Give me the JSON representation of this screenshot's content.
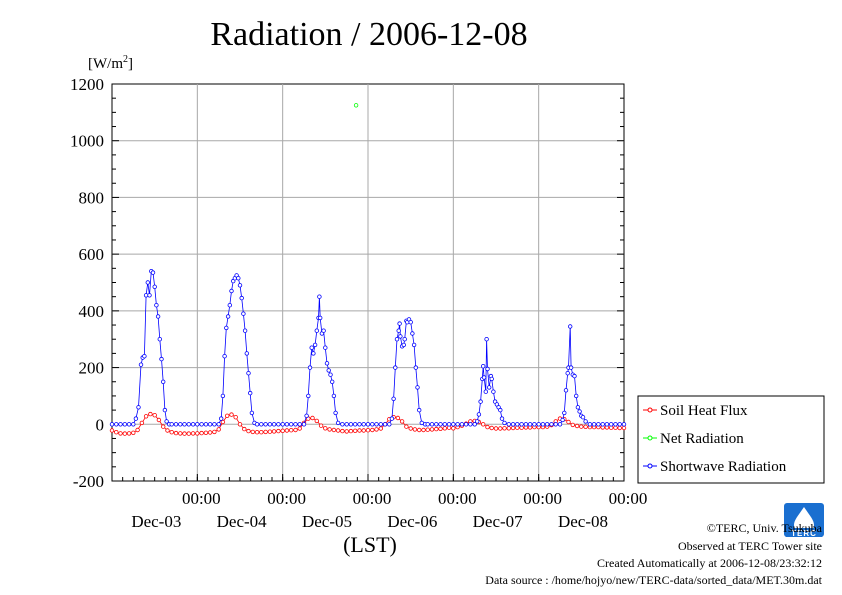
{
  "chart_data": {
    "type": "line",
    "title": "Radiation / 2006-12-08",
    "ylabel": "[W/m",
    "ylabel_sup": "2",
    "ylabel_end": "]",
    "xlabel": "(LST)",
    "ylim": [
      -200,
      1200
    ],
    "yticks": [
      -200,
      0,
      200,
      400,
      600,
      800,
      1000,
      1200
    ],
    "xlim": [
      2.5,
      8.5
    ],
    "x_unit": "days of December 2006 (LST)",
    "xticks": [
      {
        "x": 3.5,
        "time": "00:00",
        "date": "Dec-03"
      },
      {
        "x": 4.5,
        "time": "00:00",
        "date": "Dec-04"
      },
      {
        "x": 5.5,
        "time": "00:00",
        "date": "Dec-05"
      },
      {
        "x": 6.5,
        "time": "00:00",
        "date": "Dec-06"
      },
      {
        "x": 7.5,
        "time": "00:00",
        "date": "Dec-07"
      },
      {
        "x": 8.5,
        "time": "00:00",
        "date": "Dec-08"
      }
    ],
    "grid": true,
    "legend_position": "right",
    "series": [
      {
        "name": "Soil Heat Flux",
        "color": "#ff0000",
        "points": [
          [
            2.5,
            -22
          ],
          [
            2.55,
            -28
          ],
          [
            2.6,
            -32
          ],
          [
            2.65,
            -33
          ],
          [
            2.7,
            -32
          ],
          [
            2.75,
            -30
          ],
          [
            2.8,
            -20
          ],
          [
            2.85,
            5
          ],
          [
            2.9,
            28
          ],
          [
            2.95,
            36
          ],
          [
            3.0,
            32
          ],
          [
            3.05,
            15
          ],
          [
            3.1,
            -8
          ],
          [
            3.15,
            -22
          ],
          [
            3.2,
            -28
          ],
          [
            3.25,
            -31
          ],
          [
            3.3,
            -32
          ],
          [
            3.35,
            -33
          ],
          [
            3.4,
            -33
          ],
          [
            3.45,
            -32
          ],
          [
            3.5,
            -32
          ],
          [
            3.55,
            -31
          ],
          [
            3.6,
            -30
          ],
          [
            3.65,
            -29
          ],
          [
            3.7,
            -27
          ],
          [
            3.75,
            -18
          ],
          [
            3.8,
            8
          ],
          [
            3.85,
            30
          ],
          [
            3.9,
            34
          ],
          [
            3.95,
            25
          ],
          [
            4.0,
            0
          ],
          [
            4.05,
            -17
          ],
          [
            4.1,
            -24
          ],
          [
            4.15,
            -27
          ],
          [
            4.2,
            -28
          ],
          [
            4.25,
            -28
          ],
          [
            4.3,
            -27
          ],
          [
            4.35,
            -26
          ],
          [
            4.4,
            -25
          ],
          [
            4.45,
            -24
          ],
          [
            4.5,
            -23
          ],
          [
            4.55,
            -22
          ],
          [
            4.6,
            -21
          ],
          [
            4.65,
            -20
          ],
          [
            4.7,
            -15
          ],
          [
            4.75,
            5
          ],
          [
            4.8,
            20
          ],
          [
            4.85,
            22
          ],
          [
            4.9,
            12
          ],
          [
            4.95,
            -5
          ],
          [
            5.0,
            -14
          ],
          [
            5.05,
            -18
          ],
          [
            5.1,
            -20
          ],
          [
            5.15,
            -22
          ],
          [
            5.2,
            -24
          ],
          [
            5.25,
            -25
          ],
          [
            5.3,
            -24
          ],
          [
            5.35,
            -23
          ],
          [
            5.4,
            -22
          ],
          [
            5.45,
            -22
          ],
          [
            5.5,
            -21
          ],
          [
            5.55,
            -20
          ],
          [
            5.6,
            -18
          ],
          [
            5.65,
            -15
          ],
          [
            5.7,
            0
          ],
          [
            5.75,
            18
          ],
          [
            5.8,
            25
          ],
          [
            5.85,
            22
          ],
          [
            5.9,
            10
          ],
          [
            5.95,
            -8
          ],
          [
            6.0,
            -15
          ],
          [
            6.05,
            -18
          ],
          [
            6.1,
            -20
          ],
          [
            6.15,
            -20
          ],
          [
            6.2,
            -19
          ],
          [
            6.25,
            -18
          ],
          [
            6.3,
            -17
          ],
          [
            6.35,
            -16
          ],
          [
            6.4,
            -14
          ],
          [
            6.45,
            -12
          ],
          [
            6.5,
            -14
          ],
          [
            6.55,
            -10
          ],
          [
            6.6,
            -5
          ],
          [
            6.65,
            2
          ],
          [
            6.7,
            10
          ],
          [
            6.75,
            12
          ],
          [
            6.8,
            8
          ],
          [
            6.85,
            0
          ],
          [
            6.9,
            -10
          ],
          [
            6.95,
            -13
          ],
          [
            7.0,
            -15
          ],
          [
            7.05,
            -15
          ],
          [
            7.1,
            -14
          ],
          [
            7.15,
            -14
          ],
          [
            7.2,
            -13
          ],
          [
            7.25,
            -12
          ],
          [
            7.3,
            -12
          ],
          [
            7.35,
            -11
          ],
          [
            7.4,
            -11
          ],
          [
            7.45,
            -10
          ],
          [
            7.5,
            -10
          ],
          [
            7.55,
            -10
          ],
          [
            7.6,
            -8
          ],
          [
            7.65,
            -3
          ],
          [
            7.7,
            10
          ],
          [
            7.75,
            20
          ],
          [
            7.8,
            18
          ],
          [
            7.85,
            8
          ],
          [
            7.9,
            -2
          ],
          [
            7.95,
            -6
          ],
          [
            8.0,
            -8
          ],
          [
            8.05,
            -9
          ],
          [
            8.1,
            -10
          ],
          [
            8.15,
            -10
          ],
          [
            8.2,
            -10
          ],
          [
            8.25,
            -11
          ],
          [
            8.3,
            -11
          ],
          [
            8.35,
            -12
          ],
          [
            8.4,
            -12
          ],
          [
            8.45,
            -13
          ],
          [
            8.5,
            -13
          ]
        ]
      },
      {
        "name": "Net Radiation",
        "color": "#00ff00",
        "points": [
          [
            5.36,
            1125
          ]
        ]
      },
      {
        "name": "Shortwave Radiation",
        "color": "#0000ff",
        "points": [
          [
            2.5,
            0
          ],
          [
            2.55,
            0
          ],
          [
            2.6,
            0
          ],
          [
            2.65,
            0
          ],
          [
            2.7,
            0
          ],
          [
            2.75,
            0
          ],
          [
            2.78,
            20
          ],
          [
            2.81,
            60
          ],
          [
            2.84,
            210
          ],
          [
            2.86,
            235
          ],
          [
            2.88,
            240
          ],
          [
            2.9,
            455
          ],
          [
            2.92,
            500
          ],
          [
            2.94,
            455
          ],
          [
            2.96,
            540
          ],
          [
            2.98,
            535
          ],
          [
            3.0,
            485
          ],
          [
            3.02,
            420
          ],
          [
            3.04,
            380
          ],
          [
            3.06,
            300
          ],
          [
            3.08,
            230
          ],
          [
            3.1,
            150
          ],
          [
            3.12,
            50
          ],
          [
            3.14,
            10
          ],
          [
            3.17,
            0
          ],
          [
            3.2,
            0
          ],
          [
            3.25,
            0
          ],
          [
            3.3,
            0
          ],
          [
            3.35,
            0
          ],
          [
            3.4,
            0
          ],
          [
            3.45,
            0
          ],
          [
            3.5,
            0
          ],
          [
            3.55,
            0
          ],
          [
            3.6,
            0
          ],
          [
            3.65,
            0
          ],
          [
            3.7,
            0
          ],
          [
            3.75,
            0
          ],
          [
            3.78,
            20
          ],
          [
            3.8,
            100
          ],
          [
            3.82,
            240
          ],
          [
            3.84,
            340
          ],
          [
            3.86,
            380
          ],
          [
            3.88,
            420
          ],
          [
            3.9,
            470
          ],
          [
            3.92,
            505
          ],
          [
            3.94,
            515
          ],
          [
            3.96,
            525
          ],
          [
            3.98,
            515
          ],
          [
            4.0,
            490
          ],
          [
            4.02,
            445
          ],
          [
            4.04,
            390
          ],
          [
            4.06,
            330
          ],
          [
            4.08,
            250
          ],
          [
            4.1,
            180
          ],
          [
            4.12,
            110
          ],
          [
            4.14,
            40
          ],
          [
            4.17,
            5
          ],
          [
            4.2,
            0
          ],
          [
            4.25,
            0
          ],
          [
            4.3,
            0
          ],
          [
            4.35,
            0
          ],
          [
            4.4,
            0
          ],
          [
            4.45,
            0
          ],
          [
            4.5,
            0
          ],
          [
            4.55,
            0
          ],
          [
            4.6,
            0
          ],
          [
            4.65,
            0
          ],
          [
            4.7,
            0
          ],
          [
            4.75,
            0
          ],
          [
            4.78,
            30
          ],
          [
            4.8,
            100
          ],
          [
            4.82,
            200
          ],
          [
            4.84,
            270
          ],
          [
            4.86,
            250
          ],
          [
            4.88,
            280
          ],
          [
            4.9,
            330
          ],
          [
            4.92,
            375
          ],
          [
            4.93,
            450
          ],
          [
            4.94,
            375
          ],
          [
            4.96,
            320
          ],
          [
            4.98,
            330
          ],
          [
            5.0,
            270
          ],
          [
            5.02,
            215
          ],
          [
            5.04,
            190
          ],
          [
            5.06,
            175
          ],
          [
            5.08,
            150
          ],
          [
            5.1,
            100
          ],
          [
            5.12,
            40
          ],
          [
            5.15,
            5
          ],
          [
            5.2,
            0
          ],
          [
            5.25,
            0
          ],
          [
            5.3,
            0
          ],
          [
            5.35,
            0
          ],
          [
            5.4,
            0
          ],
          [
            5.45,
            0
          ],
          [
            5.5,
            0
          ],
          [
            5.55,
            0
          ],
          [
            5.6,
            0
          ],
          [
            5.65,
            0
          ],
          [
            5.7,
            0
          ],
          [
            5.75,
            0
          ],
          [
            5.78,
            20
          ],
          [
            5.8,
            90
          ],
          [
            5.82,
            200
          ],
          [
            5.84,
            300
          ],
          [
            5.86,
            330
          ],
          [
            5.87,
            355
          ],
          [
            5.88,
            310
          ],
          [
            5.9,
            275
          ],
          [
            5.92,
            280
          ],
          [
            5.93,
            300
          ],
          [
            5.95,
            365
          ],
          [
            5.96,
            360
          ],
          [
            5.98,
            370
          ],
          [
            6.0,
            360
          ],
          [
            6.02,
            320
          ],
          [
            6.04,
            280
          ],
          [
            6.06,
            200
          ],
          [
            6.08,
            130
          ],
          [
            6.1,
            50
          ],
          [
            6.13,
            5
          ],
          [
            6.17,
            0
          ],
          [
            6.2,
            0
          ],
          [
            6.25,
            0
          ],
          [
            6.3,
            0
          ],
          [
            6.35,
            0
          ],
          [
            6.4,
            0
          ],
          [
            6.45,
            0
          ],
          [
            6.5,
            0
          ],
          [
            6.55,
            0
          ],
          [
            6.6,
            0
          ],
          [
            6.65,
            0
          ],
          [
            6.7,
            0
          ],
          [
            6.75,
            0
          ],
          [
            6.78,
            10
          ],
          [
            6.8,
            35
          ],
          [
            6.82,
            80
          ],
          [
            6.84,
            160
          ],
          [
            6.85,
            205
          ],
          [
            6.86,
            165
          ],
          [
            6.88,
            115
          ],
          [
            6.89,
            300
          ],
          [
            6.9,
            195
          ],
          [
            6.92,
            130
          ],
          [
            6.94,
            170
          ],
          [
            6.95,
            160
          ],
          [
            6.97,
            115
          ],
          [
            6.99,
            80
          ],
          [
            7.01,
            70
          ],
          [
            7.03,
            60
          ],
          [
            7.05,
            50
          ],
          [
            7.07,
            20
          ],
          [
            7.1,
            5
          ],
          [
            7.15,
            0
          ],
          [
            7.2,
            0
          ],
          [
            7.25,
            0
          ],
          [
            7.3,
            0
          ],
          [
            7.35,
            0
          ],
          [
            7.4,
            0
          ],
          [
            7.45,
            0
          ],
          [
            7.5,
            0
          ],
          [
            7.55,
            0
          ],
          [
            7.6,
            0
          ],
          [
            7.65,
            0
          ],
          [
            7.7,
            0
          ],
          [
            7.75,
            0
          ],
          [
            7.78,
            15
          ],
          [
            7.8,
            40
          ],
          [
            7.82,
            120
          ],
          [
            7.84,
            180
          ],
          [
            7.85,
            200
          ],
          [
            7.87,
            345
          ],
          [
            7.88,
            200
          ],
          [
            7.9,
            175
          ],
          [
            7.92,
            170
          ],
          [
            7.94,
            100
          ],
          [
            7.96,
            60
          ],
          [
            7.98,
            45
          ],
          [
            8.0,
            30
          ],
          [
            8.02,
            25
          ],
          [
            8.05,
            10
          ],
          [
            8.1,
            0
          ],
          [
            8.15,
            0
          ],
          [
            8.2,
            0
          ],
          [
            8.25,
            0
          ],
          [
            8.3,
            0
          ],
          [
            8.35,
            0
          ],
          [
            8.4,
            0
          ],
          [
            8.45,
            0
          ],
          [
            8.5,
            0
          ]
        ]
      }
    ]
  },
  "footer": {
    "copyright": "©TERC, Univ. Tsukuba",
    "observed": "Observed at TERC Tower site",
    "created": "Created Automatically at 2006-12-08/23:32:12",
    "source": "Data source : /home/hojyo/new/TERC-data/sorted_data/MET.30m.dat"
  },
  "logo": {
    "text": "TERC",
    "color": "#1a6fd0"
  }
}
